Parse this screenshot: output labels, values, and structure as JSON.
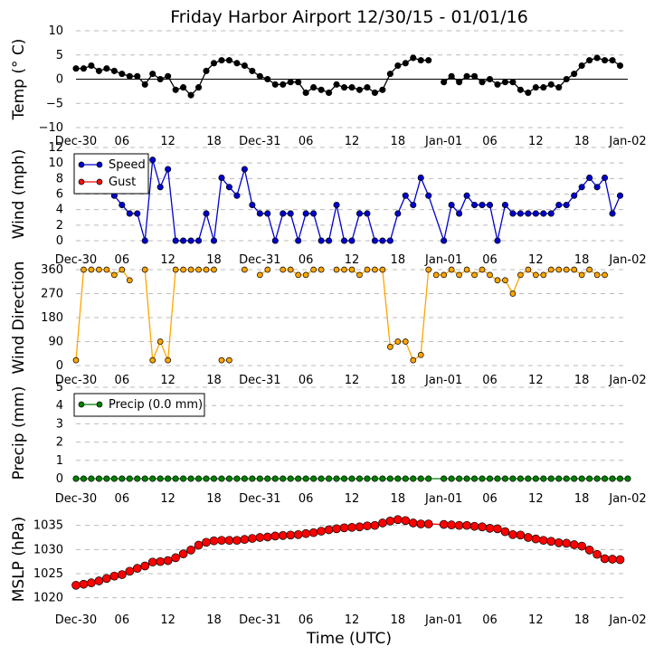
{
  "title": "Friday Harbor Airport 12/30/15 - 01/01/16",
  "xlabel": "Time (UTC)",
  "x_tick_labels": [
    "Dec-30",
    "06",
    "12",
    "18",
    "Dec-31",
    "06",
    "12",
    "18",
    "Jan-01",
    "06",
    "12",
    "18",
    "Jan-02"
  ],
  "chart_data": [
    {
      "type": "line",
      "ylabel": "Temp (° C)",
      "ylim": [
        -10,
        10
      ],
      "yticks": [
        10,
        5,
        0,
        -5,
        -10
      ],
      "grid": true,
      "x_hours_range": [
        0,
        72
      ],
      "zero_line": true,
      "series": [
        {
          "color": "#000000",
          "line_color": "#000000",
          "x": [
            0,
            1,
            2,
            3,
            4,
            5,
            6,
            7,
            8,
            9,
            10,
            11,
            12,
            13,
            14,
            15,
            16,
            17,
            18,
            19,
            20,
            21,
            22,
            23,
            24,
            25,
            26,
            27,
            28,
            29,
            30,
            31,
            32,
            33,
            34,
            35,
            36,
            37,
            38,
            39,
            40,
            41,
            42,
            43,
            44,
            45,
            46,
            47,
            48,
            49,
            50,
            51,
            52,
            53,
            54,
            55,
            56,
            57,
            58,
            59,
            60,
            61,
            62,
            63,
            64,
            65,
            66,
            67,
            68,
            69,
            70,
            71,
            72
          ],
          "y": [
            2.2,
            2.2,
            2.8,
            1.7,
            2.2,
            1.7,
            1.1,
            0.6,
            0.6,
            -1.1,
            1.1,
            0,
            0.6,
            -2.2,
            -1.7,
            -3.3,
            -1.7,
            1.7,
            3.3,
            3.9,
            3.9,
            3.3,
            2.8,
            1.7,
            0.6,
            0,
            -1.1,
            -1.1,
            -0.6,
            -0.6,
            -2.8,
            -1.7,
            -2.2,
            -2.8,
            -1.1,
            -1.7,
            -1.7,
            -2.2,
            -1.7,
            -2.8,
            -2.2,
            1.1,
            2.8,
            3.3,
            4.4,
            3.9,
            3.9,
            null,
            -0.6,
            0.6,
            -0.6,
            0.6,
            0.6,
            -0.6,
            0,
            -1.1,
            -0.6,
            -0.6,
            -2.2,
            -2.8,
            -1.7,
            -1.7,
            -1.1,
            -1.7,
            0,
            1.1,
            2.8,
            3.9,
            4.4,
            3.9,
            3.9,
            2.8,
            null
          ]
        }
      ]
    },
    {
      "type": "line",
      "ylabel": "Wind (mph)",
      "ylim": [
        0,
        12
      ],
      "yticks": [
        12,
        10,
        8,
        6,
        4,
        2,
        0
      ],
      "grid": true,
      "legend": "top-left",
      "series": [
        {
          "name": "Speed",
          "color": "#0000cc",
          "line_color": "#0000cc",
          "x": [
            5,
            6,
            7,
            8,
            9,
            10,
            11,
            12,
            13,
            14,
            15,
            16,
            17,
            18,
            19,
            20,
            21,
            22,
            23,
            24,
            25,
            26,
            27,
            28,
            29,
            30,
            31,
            32,
            33,
            34,
            35,
            36,
            37,
            38,
            39,
            40,
            41,
            42,
            43,
            44,
            45,
            46,
            48,
            49,
            50,
            51,
            52,
            53,
            54,
            55,
            56,
            57,
            58,
            59,
            60,
            61,
            62,
            63,
            64,
            65,
            66,
            67,
            68,
            69,
            70,
            71,
            72
          ],
          "y": [
            5.8,
            4.6,
            3.5,
            3.5,
            0,
            10.4,
            6.9,
            9.2,
            0,
            0,
            0,
            0,
            3.5,
            0,
            8.1,
            6.9,
            5.8,
            9.2,
            4.6,
            3.5,
            3.5,
            0,
            3.5,
            3.5,
            0,
            3.5,
            3.5,
            0,
            0,
            4.6,
            0,
            0,
            3.5,
            3.5,
            0,
            0,
            0,
            3.5,
            5.8,
            4.6,
            8.1,
            5.8,
            0,
            4.6,
            3.5,
            5.8,
            4.6,
            4.6,
            4.6,
            0,
            4.6,
            3.5,
            3.5,
            3.5,
            3.5,
            3.5,
            3.5,
            4.6,
            4.6,
            5.8,
            6.9,
            8.1,
            6.9,
            8.1,
            3.5,
            5.8,
            null
          ]
        },
        {
          "name": "Gust",
          "color": "#ee1111",
          "line_color": "#ee1111",
          "x": [],
          "y": []
        }
      ]
    },
    {
      "type": "line",
      "ylabel": "Wind Direction",
      "ylim": [
        0,
        360
      ],
      "yticks": [
        360,
        270,
        180,
        90,
        0
      ],
      "grid": true,
      "series": [
        {
          "color": "#ffa500",
          "line_color": "#ffa500",
          "segments": [
            {
              "x": [
                0,
                1,
                2,
                3,
                4,
                5,
                6,
                7
              ],
              "y": [
                20,
                360,
                360,
                360,
                360,
                340,
                360,
                320
              ]
            },
            {
              "x": [
                9,
                10,
                11,
                12,
                13,
                14,
                15,
                16,
                17,
                18
              ],
              "y": [
                360,
                20,
                90,
                20,
                360,
                360,
                360,
                360,
                360,
                360
              ]
            },
            {
              "x": [
                19,
                20
              ],
              "y": [
                20,
                20
              ]
            },
            {
              "x": [
                22
              ],
              "y": [
                360
              ]
            },
            {
              "x": [
                24,
                25
              ],
              "y": [
                340,
                360
              ]
            },
            {
              "x": [
                27,
                28,
                29,
                30,
                31,
                32
              ],
              "y": [
                360,
                360,
                340,
                340,
                360,
                360
              ]
            },
            {
              "x": [
                34,
                35,
                36,
                37,
                38,
                39,
                40,
                41,
                42,
                43,
                44,
                45,
                46
              ],
              "y": [
                360,
                360,
                360,
                340,
                360,
                360,
                360,
                70,
                90,
                90,
                20,
                40,
                360
              ]
            },
            {
              "x": [
                47,
                48,
                49,
                50,
                51,
                52,
                53,
                54,
                55,
                56,
                57,
                58,
                59,
                60,
                61,
                62,
                63,
                64,
                65,
                66,
                67,
                68,
                69,
                70,
                71,
                72
              ],
              "y": [
                340,
                340,
                360,
                340,
                360,
                340,
                360,
                340,
                320,
                320,
                270,
                340,
                360,
                340,
                340,
                360,
                360,
                360,
                360,
                340,
                360,
                340,
                340,
                null,
                null,
                null
              ]
            }
          ],
          "x": [
            0,
            72
          ],
          "y": [
            null,
            null
          ]
        }
      ]
    },
    {
      "type": "line",
      "ylabel": "Precip (mm)",
      "ylim": [
        0,
        5
      ],
      "yticks": [
        5,
        4,
        3,
        2,
        1,
        0
      ],
      "grid": true,
      "legend": "top-left",
      "series": [
        {
          "name": "Precip (0.0 mm)",
          "color": "#008000",
          "line_color": "#008000",
          "x": [
            0,
            1,
            2,
            3,
            4,
            5,
            6,
            7,
            8,
            9,
            10,
            11,
            12,
            13,
            14,
            15,
            16,
            17,
            18,
            19,
            20,
            21,
            22,
            23,
            24,
            25,
            26,
            27,
            28,
            29,
            30,
            31,
            32,
            33,
            34,
            35,
            36,
            37,
            38,
            39,
            40,
            41,
            42,
            43,
            44,
            45,
            46,
            48,
            49,
            50,
            51,
            52,
            53,
            54,
            55,
            56,
            57,
            58,
            59,
            60,
            61,
            62,
            63,
            64,
            65,
            66,
            67,
            68,
            69,
            70,
            71,
            72
          ],
          "y": [
            0,
            0,
            0,
            0,
            0,
            0,
            0,
            0,
            0,
            0,
            0,
            0,
            0,
            0,
            0,
            0,
            0,
            0,
            0,
            0,
            0,
            0,
            0,
            0,
            0,
            0,
            0,
            0,
            0,
            0,
            0,
            0,
            0,
            0,
            0,
            0,
            0,
            0,
            0,
            0,
            0,
            0,
            0,
            0,
            0,
            0,
            0,
            0,
            0,
            0,
            0,
            0,
            0,
            0,
            0,
            0,
            0,
            0,
            0,
            0,
            0,
            0,
            0,
            0,
            0,
            0,
            0,
            0,
            0,
            0,
            0,
            0
          ]
        }
      ]
    },
    {
      "type": "line",
      "ylabel": "MSLP (hPa)",
      "ylim": [
        1019,
        1037
      ],
      "yticks": [
        1035,
        1030,
        1025,
        1020
      ],
      "grid": true,
      "series": [
        {
          "color": "#ff0000",
          "line_color": "#ff0000",
          "x": [
            0,
            1,
            2,
            3,
            4,
            5,
            6,
            7,
            8,
            9,
            10,
            11,
            12,
            13,
            14,
            15,
            16,
            17,
            18,
            19,
            20,
            21,
            22,
            23,
            24,
            25,
            26,
            27,
            28,
            29,
            30,
            31,
            32,
            33,
            34,
            35,
            36,
            37,
            38,
            39,
            40,
            41,
            42,
            43,
            44,
            45,
            46,
            48,
            49,
            50,
            51,
            52,
            53,
            54,
            55,
            56,
            57,
            58,
            59,
            60,
            61,
            62,
            63,
            64,
            65,
            66,
            67,
            68,
            69,
            70,
            71,
            72
          ],
          "y": [
            1022.6,
            1022.8,
            1023.1,
            1023.5,
            1024.0,
            1024.5,
            1024.8,
            1025.5,
            1026.1,
            1026.6,
            1027.4,
            1027.5,
            1027.7,
            1028.3,
            1029.1,
            1029.9,
            1030.9,
            1031.5,
            1031.8,
            1031.9,
            1031.9,
            1031.9,
            1032.1,
            1032.3,
            1032.5,
            1032.6,
            1032.8,
            1032.9,
            1033.0,
            1033.1,
            1033.3,
            1033.5,
            1033.8,
            1034.1,
            1034.3,
            1034.5,
            1034.6,
            1034.7,
            1034.9,
            1035.0,
            1035.5,
            1035.9,
            1036.2,
            1036.0,
            1035.5,
            1035.3,
            1035.3,
            1035.2,
            1035.1,
            1035.0,
            1035.0,
            1034.8,
            1034.7,
            1034.4,
            1034.3,
            1033.7,
            1033.1,
            1033.0,
            1032.5,
            1032.2,
            1031.9,
            1031.7,
            1031.4,
            1031.3,
            1031.0,
            1030.7,
            1029.9,
            1029.0,
            1028.1,
            1028.0,
            1027.9,
            null
          ]
        }
      ]
    }
  ]
}
